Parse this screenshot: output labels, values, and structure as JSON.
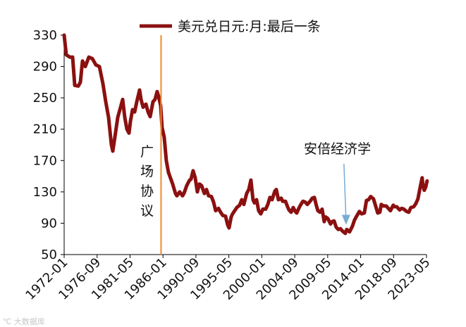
{
  "chart_data": {
    "type": "line",
    "title": "",
    "xlabel": "",
    "ylabel": "",
    "ylim": [
      50,
      330
    ],
    "yticks": [
      50,
      90,
      130,
      170,
      210,
      250,
      290,
      330
    ],
    "xticks": [
      "1972-01",
      "1976-09",
      "1981-05",
      "1986-01",
      "1990-09",
      "1995-05",
      "2000-01",
      "2004-09",
      "2009-05",
      "2014-01",
      "2018-09",
      "2023-05"
    ],
    "legend": {
      "position": "top",
      "label": "美元兑日元:月:最后一条"
    },
    "series": [
      {
        "name": "美元兑日元:月:最后一条",
        "color": "#8b1010",
        "points": [
          [
            1972.0,
            330
          ],
          [
            1972.3,
            305
          ],
          [
            1972.8,
            302
          ],
          [
            1973.2,
            302
          ],
          [
            1973.5,
            266
          ],
          [
            1974.0,
            265
          ],
          [
            1974.3,
            270
          ],
          [
            1974.6,
            297
          ],
          [
            1975.0,
            290
          ],
          [
            1975.5,
            302
          ],
          [
            1976.0,
            300
          ],
          [
            1976.5,
            292
          ],
          [
            1977.0,
            290
          ],
          [
            1977.5,
            268
          ],
          [
            1977.9,
            245
          ],
          [
            1978.3,
            225
          ],
          [
            1978.7,
            190
          ],
          [
            1978.9,
            182
          ],
          [
            1979.2,
            200
          ],
          [
            1979.6,
            225
          ],
          [
            1980.0,
            238
          ],
          [
            1980.3,
            248
          ],
          [
            1980.6,
            225
          ],
          [
            1980.9,
            210
          ],
          [
            1981.2,
            205
          ],
          [
            1981.4,
            220
          ],
          [
            1981.7,
            235
          ],
          [
            1982.0,
            232
          ],
          [
            1982.3,
            245
          ],
          [
            1982.7,
            260
          ],
          [
            1982.9,
            248
          ],
          [
            1983.2,
            238
          ],
          [
            1983.6,
            242
          ],
          [
            1983.9,
            232
          ],
          [
            1984.2,
            226
          ],
          [
            1984.6,
            245
          ],
          [
            1984.9,
            248
          ],
          [
            1985.2,
            258
          ],
          [
            1985.4,
            252
          ],
          [
            1985.7,
            240
          ],
          [
            1985.9,
            212
          ],
          [
            1986.2,
            200
          ],
          [
            1986.5,
            170
          ],
          [
            1986.8,
            155
          ],
          [
            1987.0,
            150
          ],
          [
            1987.4,
            140
          ],
          [
            1987.8,
            128
          ],
          [
            1988.0,
            125
          ],
          [
            1988.4,
            130
          ],
          [
            1988.8,
            125
          ],
          [
            1989.0,
            128
          ],
          [
            1989.4,
            138
          ],
          [
            1989.8,
            145
          ],
          [
            1990.0,
            146
          ],
          [
            1990.3,
            157
          ],
          [
            1990.6,
            148
          ],
          [
            1990.9,
            130
          ],
          [
            1991.2,
            140
          ],
          [
            1991.5,
            138
          ],
          [
            1991.9,
            128
          ],
          [
            1992.2,
            133
          ],
          [
            1992.5,
            125
          ],
          [
            1992.9,
            124
          ],
          [
            1993.2,
            117
          ],
          [
            1993.5,
            106
          ],
          [
            1993.9,
            109
          ],
          [
            1994.2,
            104
          ],
          [
            1994.5,
            100
          ],
          [
            1994.9,
            99
          ],
          [
            1995.2,
            88
          ],
          [
            1995.4,
            84
          ],
          [
            1995.7,
            98
          ],
          [
            1995.9,
            102
          ],
          [
            1996.2,
            106
          ],
          [
            1996.5,
            110
          ],
          [
            1996.9,
            113
          ],
          [
            1997.2,
            120
          ],
          [
            1997.5,
            114
          ],
          [
            1997.9,
            128
          ],
          [
            1998.2,
            133
          ],
          [
            1998.5,
            145
          ],
          [
            1998.8,
            120
          ],
          [
            1999.0,
            116
          ],
          [
            1999.3,
            120
          ],
          [
            1999.6,
            106
          ],
          [
            1999.9,
            102
          ],
          [
            2000.2,
            108
          ],
          [
            2000.6,
            108
          ],
          [
            2000.9,
            114
          ],
          [
            2001.2,
            123
          ],
          [
            2001.5,
            120
          ],
          [
            2001.9,
            131
          ],
          [
            2002.1,
            133
          ],
          [
            2002.4,
            120
          ],
          [
            2002.8,
            122
          ],
          [
            2003.0,
            118
          ],
          [
            2003.4,
            118
          ],
          [
            2003.7,
            111
          ],
          [
            2003.9,
            107
          ],
          [
            2004.2,
            104
          ],
          [
            2004.5,
            110
          ],
          [
            2004.8,
            105
          ],
          [
            2005.0,
            103
          ],
          [
            2005.4,
            111
          ],
          [
            2005.8,
            117
          ],
          [
            2005.9,
            118
          ],
          [
            2006.2,
            117
          ],
          [
            2006.5,
            114
          ],
          [
            2006.9,
            118
          ],
          [
            2007.2,
            122
          ],
          [
            2007.5,
            123
          ],
          [
            2007.8,
            112
          ],
          [
            2008.0,
            106
          ],
          [
            2008.3,
            104
          ],
          [
            2008.6,
            108
          ],
          [
            2008.9,
            92
          ],
          [
            2009.1,
            98
          ],
          [
            2009.4,
            96
          ],
          [
            2009.8,
            89
          ],
          [
            2010.0,
            92
          ],
          [
            2010.3,
            93
          ],
          [
            2010.6,
            85
          ],
          [
            2010.9,
            82
          ],
          [
            2011.2,
            83
          ],
          [
            2011.5,
            80
          ],
          [
            2011.9,
            77
          ],
          [
            2012.1,
            82
          ],
          [
            2012.5,
            79
          ],
          [
            2012.9,
            86
          ],
          [
            2013.2,
            94
          ],
          [
            2013.5,
            99
          ],
          [
            2013.9,
            105
          ],
          [
            2014.2,
            102
          ],
          [
            2014.6,
            103
          ],
          [
            2014.9,
            119
          ],
          [
            2015.2,
            120
          ],
          [
            2015.5,
            124
          ],
          [
            2015.9,
            121
          ],
          [
            2016.2,
            112
          ],
          [
            2016.5,
            103
          ],
          [
            2016.8,
            104
          ],
          [
            2017.0,
            114
          ],
          [
            2017.3,
            112
          ],
          [
            2017.7,
            112
          ],
          [
            2018.0,
            109
          ],
          [
            2018.3,
            106
          ],
          [
            2018.7,
            113
          ],
          [
            2018.9,
            111
          ],
          [
            2019.2,
            111
          ],
          [
            2019.6,
            107
          ],
          [
            2019.9,
            109
          ],
          [
            2020.2,
            108
          ],
          [
            2020.6,
            105
          ],
          [
            2020.9,
            104
          ],
          [
            2021.2,
            110
          ],
          [
            2021.6,
            111
          ],
          [
            2021.9,
            115
          ],
          [
            2022.2,
            121
          ],
          [
            2022.5,
            135
          ],
          [
            2022.8,
            148
          ],
          [
            2022.9,
            138
          ],
          [
            2023.1,
            132
          ],
          [
            2023.3,
            136
          ],
          [
            2023.5,
            144
          ]
        ]
      }
    ],
    "annotations": [
      {
        "label": "广场协议",
        "type": "vertical-line",
        "x": 1985.75,
        "color": "#f08a2a"
      },
      {
        "label": "安倍经济学",
        "type": "arrow",
        "x": 2012.0,
        "y": 81,
        "color": "#7aabd4"
      }
    ]
  },
  "watermark": "℃ 大数据库"
}
